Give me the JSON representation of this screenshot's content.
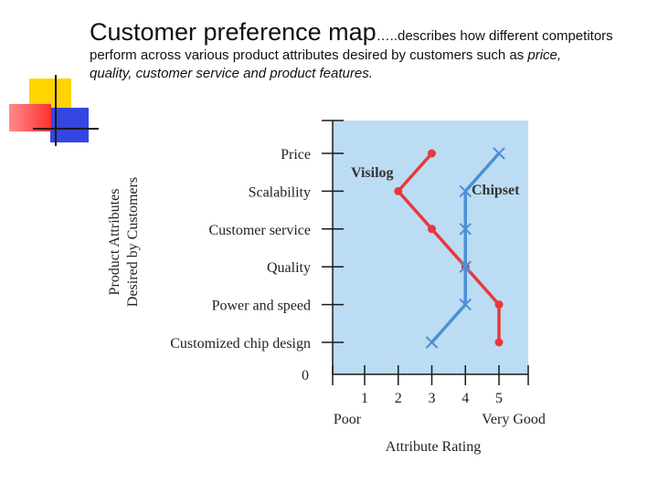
{
  "slide": {
    "title": "Customer preference map",
    "title_dots": "…..",
    "desc_line1": "describes how different competitors",
    "desc_line2_prefix": "perform across various product attributes desired by customers such as ",
    "desc_line2_italic": "price,",
    "desc_line3_italic": "quality, customer service and product features."
  },
  "chart_data": {
    "type": "line",
    "categories": [
      "Price",
      "Scalability",
      "Customer service",
      "Quality",
      "Power and speed",
      "Customized chip design"
    ],
    "series": [
      {
        "name": "Visilog",
        "values": [
          3,
          2,
          3,
          4,
          5,
          5
        ],
        "color": "#e8383d",
        "marker": "circle"
      },
      {
        "name": "Chipset",
        "values": [
          5,
          4,
          4,
          4,
          4,
          3
        ],
        "color": "#4a90d6",
        "marker": "x"
      }
    ],
    "xlabel": "Attribute Rating",
    "ylabel_lines": [
      "Product Attributes",
      "Desired by Customers"
    ],
    "x_ticks": [
      "1",
      "2",
      "3",
      "4",
      "5"
    ],
    "zero_label": "0",
    "x_low_label": "Poor",
    "x_high_label": "Very Good",
    "xlim": [
      0,
      5
    ],
    "plot_background": "#bcdcf3",
    "grid": false
  }
}
